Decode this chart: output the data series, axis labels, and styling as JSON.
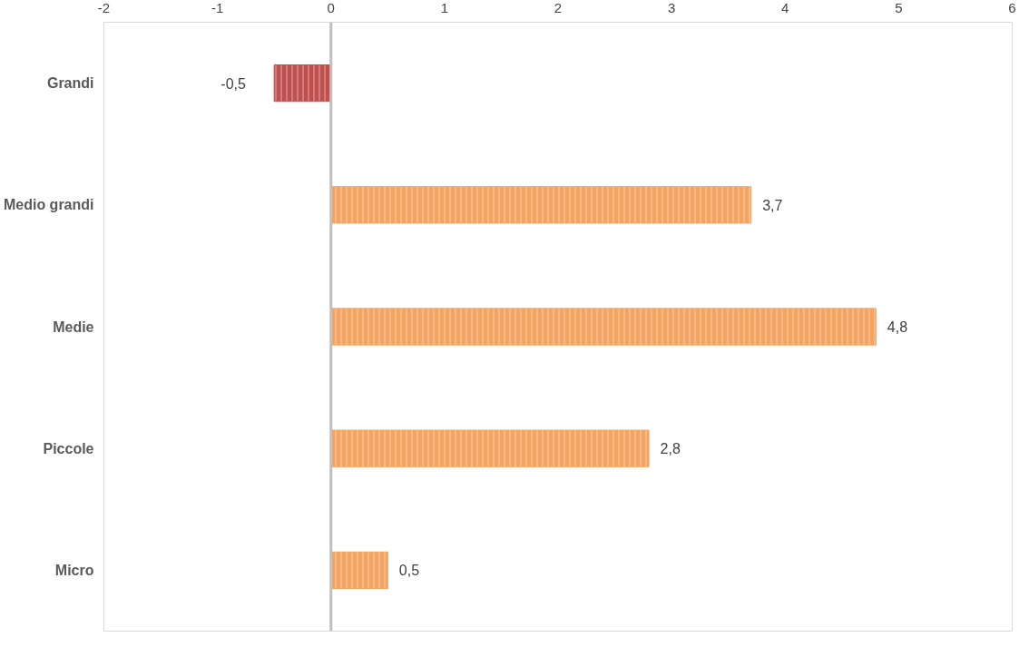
{
  "chart_data": {
    "type": "bar",
    "orientation": "horizontal",
    "categories": [
      "Grandi",
      "Medio grandi",
      "Medie",
      "Piccole",
      "Micro"
    ],
    "values": [
      -0.5,
      3.7,
      4.8,
      2.8,
      0.5
    ],
    "colors": [
      "#c0504d",
      "#f4a460",
      "#f4a460",
      "#f4a460",
      "#f4a460"
    ],
    "value_labels": [
      "-0,5",
      "3,7",
      "4,8",
      "2,8",
      "0,5"
    ],
    "xlim": [
      -2,
      6
    ],
    "xticks": [
      -2,
      -1,
      0,
      1,
      2,
      3,
      4,
      5,
      6
    ]
  }
}
